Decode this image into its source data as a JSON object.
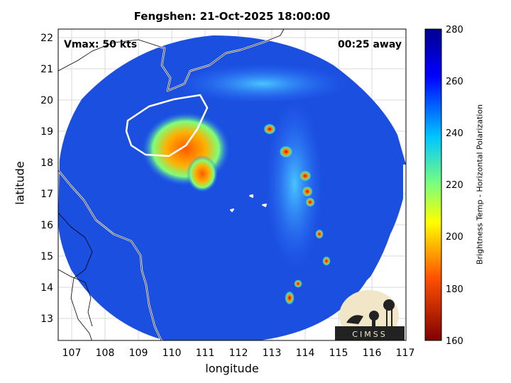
{
  "title": "Fengshen: 21-Oct-2025 18:00:00",
  "xlabel": "longitude",
  "ylabel": "latitude",
  "vmax_text": "Vmax: 50 kts",
  "away_text": "00:25 away",
  "colorbar": {
    "label": "Brightness Temp - Horizontal Polarization",
    "min": 160,
    "max": 280,
    "ticks": [
      "280",
      "260",
      "240",
      "220",
      "200",
      "180",
      "160"
    ]
  },
  "x_ticks": [
    "107",
    "108",
    "109",
    "110",
    "111",
    "112",
    "113",
    "114",
    "115",
    "116",
    "117"
  ],
  "y_ticks": [
    "22",
    "21",
    "20",
    "19",
    "18",
    "17",
    "16",
    "15",
    "14",
    "13"
  ],
  "logo": {
    "text": "CIMSS"
  },
  "colors": {
    "background": "#1b4fe0",
    "frame": "#000000",
    "coast": "#ffffff"
  }
}
